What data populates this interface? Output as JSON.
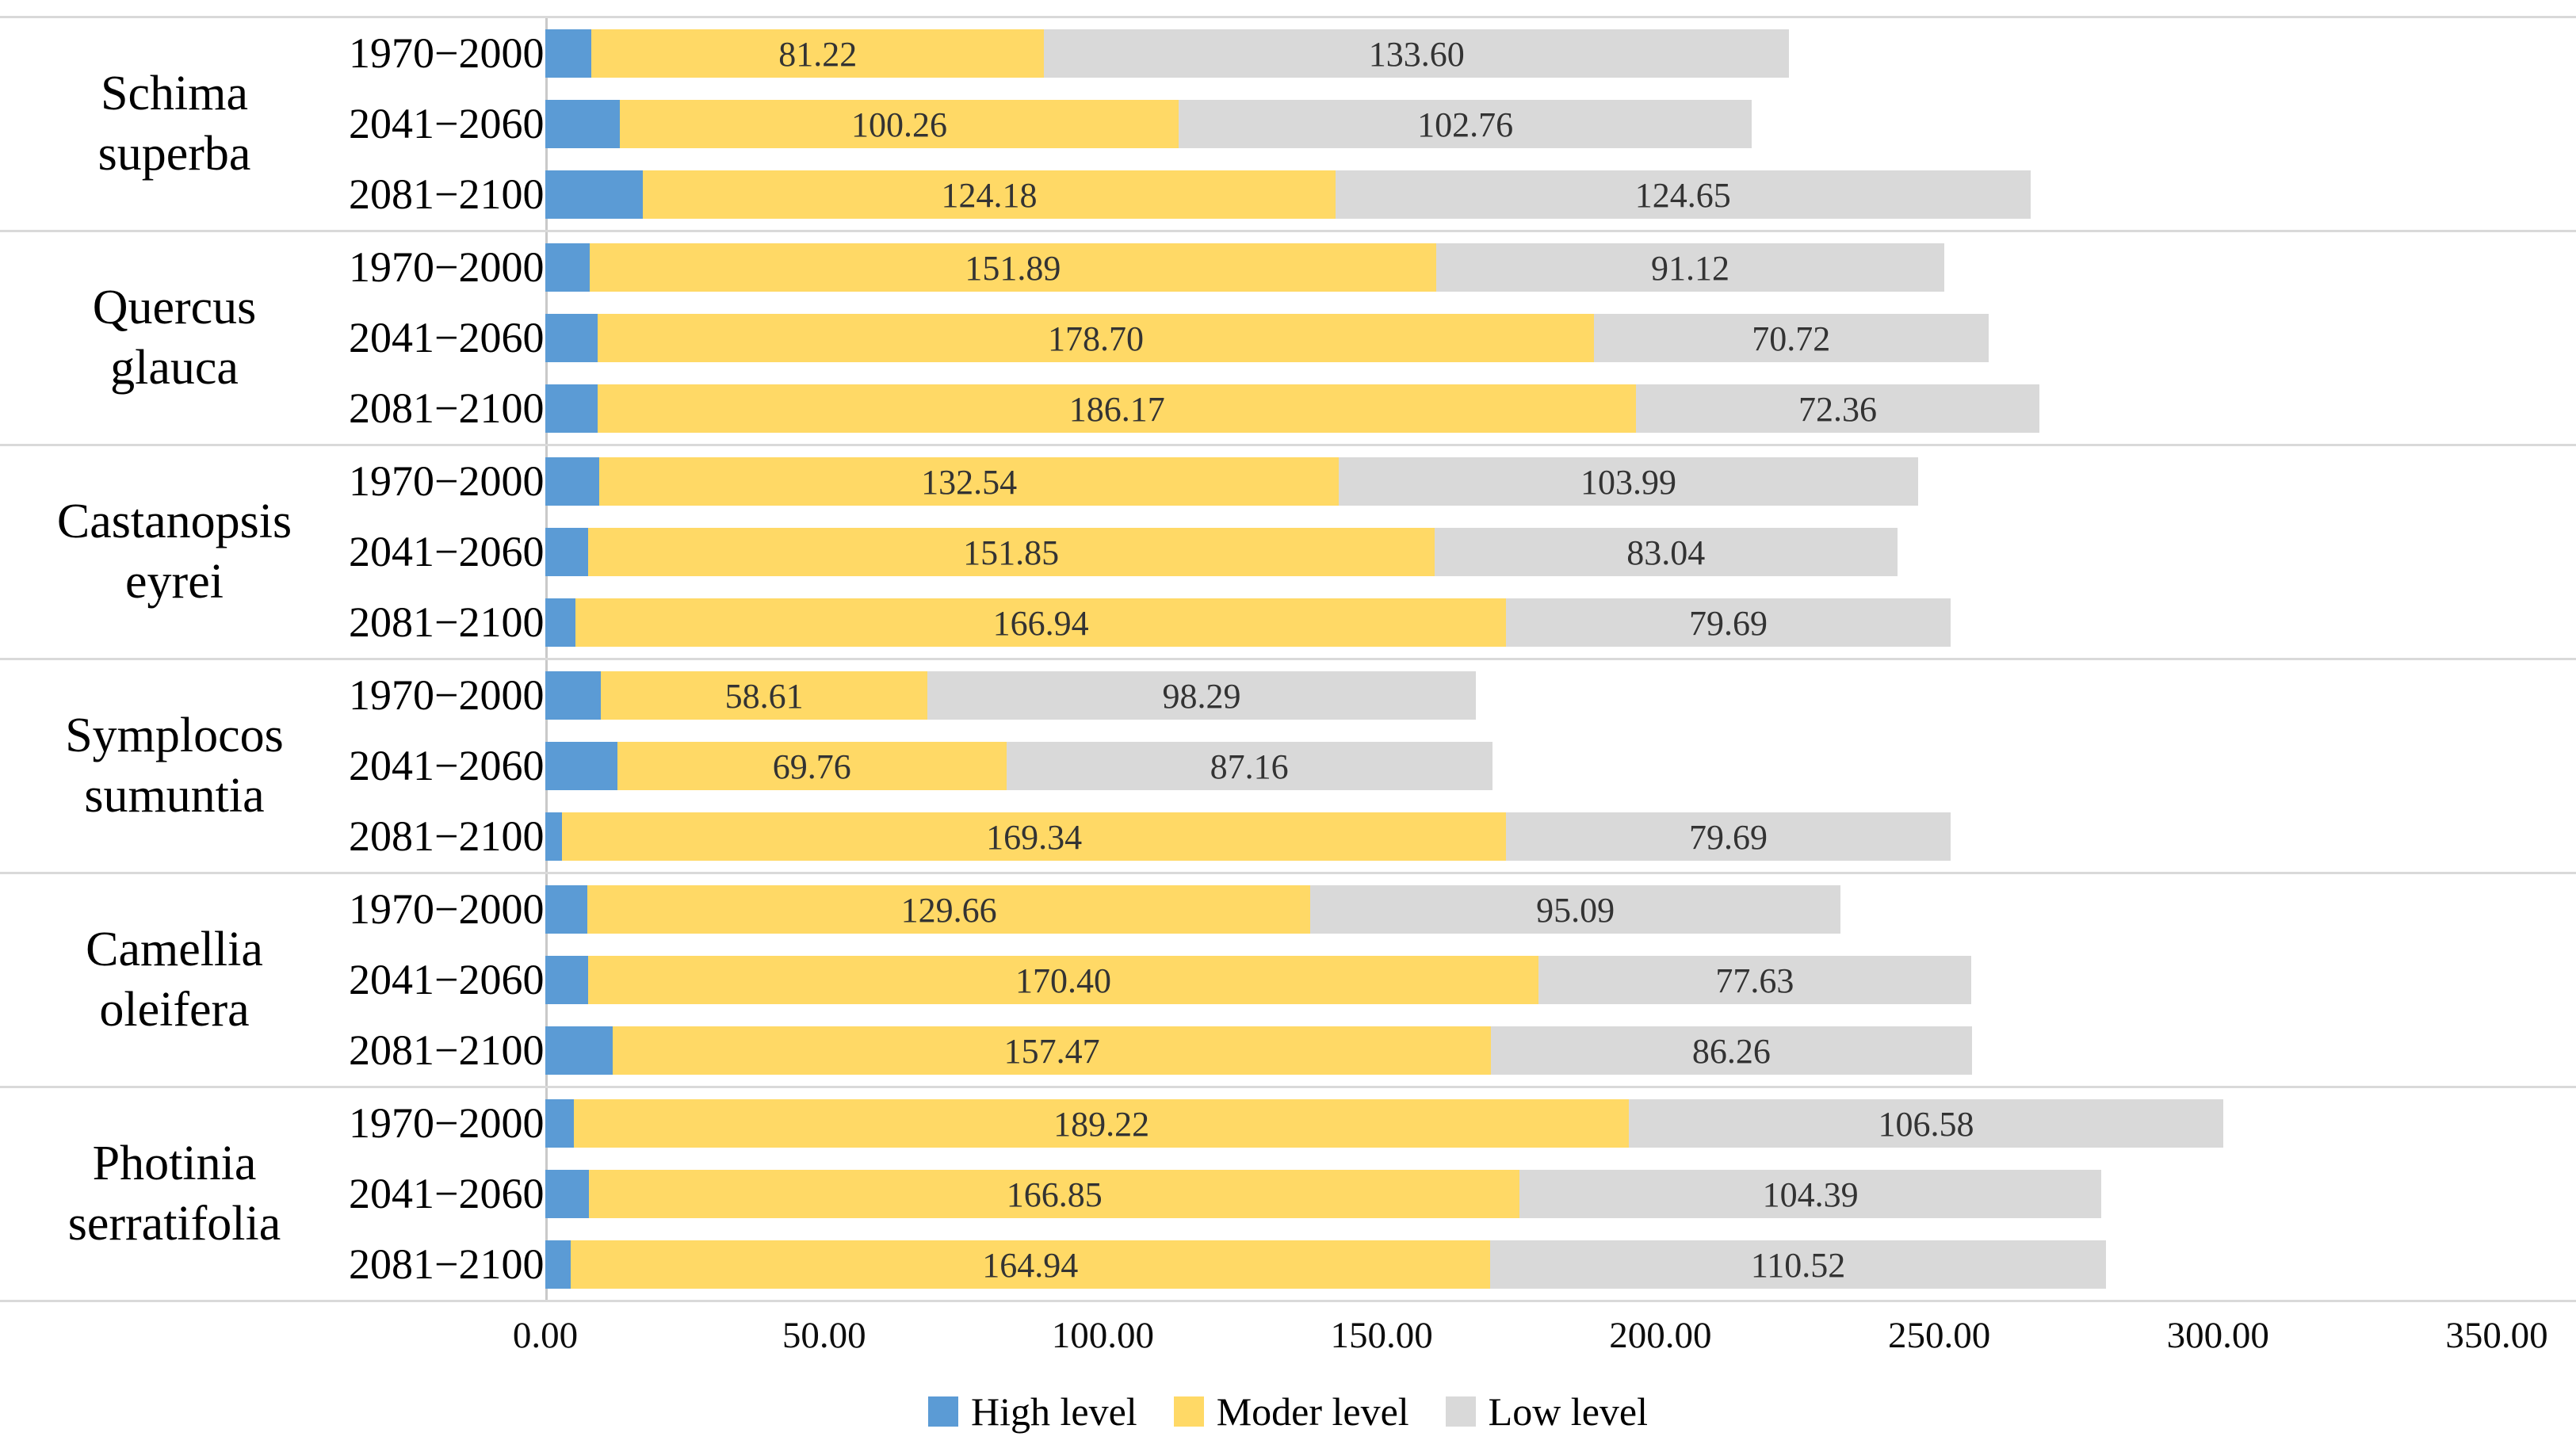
{
  "chart_data": {
    "type": "bar",
    "orientation": "horizontal",
    "stacked": true,
    "title": "",
    "xlabel": "",
    "ylabel": "",
    "xlim": [
      0,
      350
    ],
    "x_tick_labels": [
      "0.00",
      "50.00",
      "100.00",
      "150.00",
      "200.00",
      "250.00",
      "300.00",
      "350.00"
    ],
    "grid": false,
    "legend_position": "bottom",
    "series": [
      {
        "name": "High level",
        "color": "#5B9BD5"
      },
      {
        "name": "Moder level",
        "color": "#FFD966"
      },
      {
        "name": "Low level",
        "color": "#D9D9D9"
      }
    ],
    "groups": [
      {
        "species": "Schima\nsuperba",
        "rows": [
          {
            "period": "1970−2000",
            "values": [
              8.25,
              81.22,
              133.6
            ]
          },
          {
            "period": "2041−2060",
            "values": [
              13.35,
              100.26,
              102.76
            ]
          },
          {
            "period": "2081−2100",
            "values": [
              17.53,
              124.18,
              124.65
            ]
          }
        ]
      },
      {
        "species": "Quercus\nglauca",
        "rows": [
          {
            "period": "1970−2000",
            "values": [
              7.91,
              151.89,
              91.12
            ]
          },
          {
            "period": "2041−2060",
            "values": [
              9.39,
              178.7,
              70.72
            ]
          },
          {
            "period": "2081−2100",
            "values": [
              9.45,
              186.17,
              72.36
            ]
          }
        ]
      },
      {
        "species": "Castanopsis\neyrei",
        "rows": [
          {
            "period": "1970−2000",
            "values": [
              9.73,
              132.54,
              103.99
            ]
          },
          {
            "period": "2041−2060",
            "values": [
              7.61,
              151.85,
              83.04
            ]
          },
          {
            "period": "2081−2100",
            "values": [
              5.4,
              166.94,
              79.69
            ]
          }
        ]
      },
      {
        "species": "Symplocos\nsumuntia",
        "rows": [
          {
            "period": "1970−2000",
            "values": [
              9.95,
              58.61,
              98.29
            ]
          },
          {
            "period": "2041−2060",
            "values": [
              12.92,
              69.76,
              87.16
            ]
          },
          {
            "period": "2081−2100",
            "values": [
              3.0,
              169.34,
              79.69
            ]
          }
        ]
      },
      {
        "species": "Camellia\noleifera",
        "rows": [
          {
            "period": "1970−2000",
            "values": [
              7.55,
              129.66,
              95.09
            ]
          },
          {
            "period": "2041−2060",
            "values": [
              7.7,
              170.4,
              77.63
            ]
          },
          {
            "period": "2081−2100",
            "values": [
              12.12,
              157.47,
              86.26
            ]
          }
        ]
      },
      {
        "species": "Photinia\nserratifolia",
        "rows": [
          {
            "period": "1970−2000",
            "values": [
              5.13,
              189.22,
              106.58
            ]
          },
          {
            "period": "2041−2060",
            "values": [
              7.87,
              166.85,
              104.39
            ]
          },
          {
            "period": "2081−2100",
            "values": [
              4.5,
              164.94,
              110.52
            ]
          }
        ]
      }
    ]
  }
}
